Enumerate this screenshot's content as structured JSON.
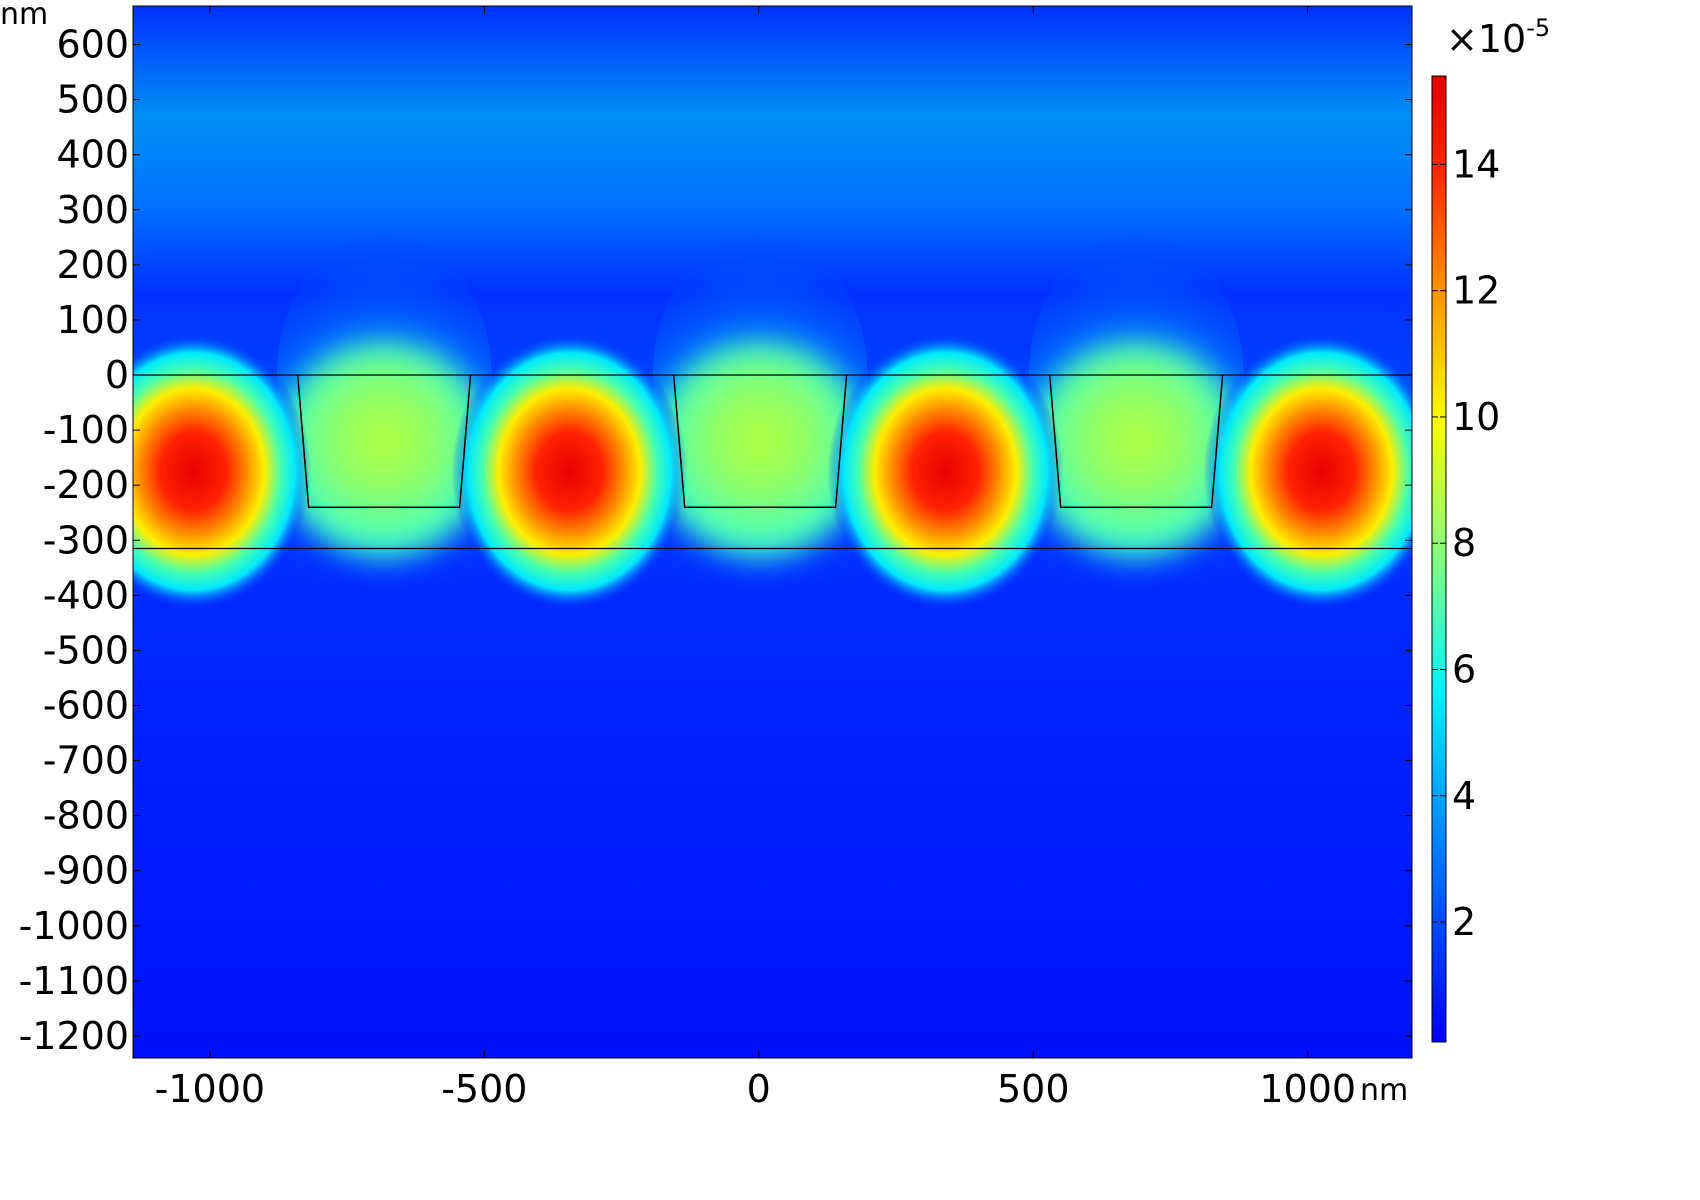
{
  "chart_data": {
    "type": "heatmap",
    "title": "",
    "xlabel": "",
    "ylabel": "",
    "x_unit": "nm",
    "y_unit": "nm",
    "xlim": [
      -1140,
      1190
    ],
    "ylim": [
      -1240,
      670
    ],
    "x_ticks": [
      -1000,
      -500,
      0,
      500,
      1000
    ],
    "y_ticks": [
      600,
      500,
      400,
      300,
      200,
      100,
      0,
      -100,
      -200,
      -300,
      -400,
      -500,
      -600,
      -700,
      -800,
      -900,
      -1000,
      -1100,
      -1200
    ],
    "x_tick_labels": [
      "-1000",
      "-500",
      "0",
      "500",
      "1000"
    ],
    "y_tick_labels": [
      "600",
      "500",
      "400",
      "300",
      "200",
      "100",
      "0",
      "-100",
      "-200",
      "-300",
      "-400",
      "-500",
      "-600",
      "-700",
      "-800",
      "-900",
      "-1000",
      "-1100",
      "-1200"
    ],
    "colorbar": {
      "colormap": "jet",
      "multiplier": "×10",
      "multiplier_exponent": "-5",
      "range": [
        0.1,
        15.4
      ],
      "ticks": [
        2,
        4,
        6,
        8,
        10,
        12,
        14
      ],
      "tick_labels": [
        "2",
        "4",
        "6",
        "8",
        "10",
        "12",
        "14"
      ]
    },
    "field_peaks": [
      {
        "x": -1030,
        "y": -175,
        "value": 15.4
      },
      {
        "x": -345,
        "y": -175,
        "value": 15.4
      },
      {
        "x": 340,
        "y": -175,
        "value": 15.4
      },
      {
        "x": 1025,
        "y": -175,
        "value": 15.4
      }
    ],
    "grating_ridges": [
      {
        "top_left": -840,
        "top_right": -525,
        "bottom_left": -820,
        "bottom_right": -545,
        "value": 8.5
      },
      {
        "top_left": -155,
        "top_right": 160,
        "bottom_left": -135,
        "bottom_right": 140,
        "value": 8.5
      },
      {
        "top_left": 530,
        "top_right": 845,
        "bottom_left": 550,
        "bottom_right": 825,
        "value": 8.5
      }
    ],
    "structure": {
      "layer_top_y": 0,
      "ridge_bottom_y": -240,
      "layer_bottom_y": -315
    },
    "grid": false,
    "legend": "none"
  }
}
